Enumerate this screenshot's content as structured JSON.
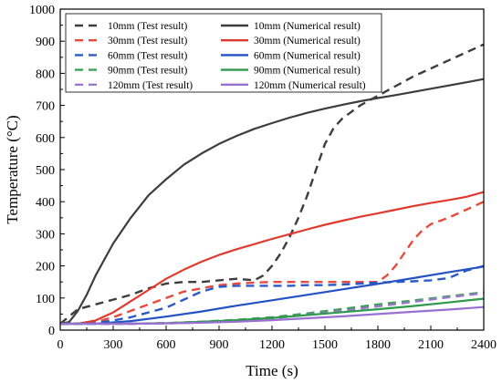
{
  "chart_data": {
    "type": "line",
    "xlabel": "Time (s)",
    "ylabel": "Temperature (°C)",
    "xlim": [
      0,
      2400
    ],
    "ylim": [
      0,
      1000
    ],
    "xticks": [
      0,
      300,
      600,
      900,
      1200,
      1500,
      1800,
      2100,
      2400
    ],
    "yticks": [
      0,
      100,
      200,
      300,
      400,
      500,
      600,
      700,
      800,
      900,
      1000
    ],
    "grid": false,
    "legend_position": "top-left",
    "series": [
      {
        "name": "10mm (Test result)",
        "style": "dashed",
        "color": "#3d3d3d",
        "x": [
          0,
          100,
          200,
          300,
          400,
          500,
          600,
          700,
          800,
          900,
          1000,
          1100,
          1150,
          1200,
          1250,
          1300,
          1350,
          1400,
          1450,
          1500,
          1550,
          1600,
          1700,
          1800,
          1900,
          2000,
          2100,
          2200,
          2300,
          2400
        ],
        "y": [
          20,
          65,
          80,
          95,
          110,
          130,
          145,
          150,
          150,
          155,
          160,
          155,
          170,
          200,
          240,
          290,
          350,
          420,
          500,
          580,
          630,
          660,
          700,
          730,
          760,
          790,
          815,
          840,
          865,
          890
        ]
      },
      {
        "name": "30mm (Test result)",
        "style": "dashed",
        "color": "#e84a3c",
        "x": [
          0,
          100,
          200,
          300,
          400,
          500,
          600,
          700,
          800,
          900,
          1000,
          1100,
          1200,
          1300,
          1400,
          1500,
          1600,
          1700,
          1800,
          1850,
          1900,
          1950,
          2000,
          2050,
          2100,
          2200,
          2300,
          2400
        ],
        "y": [
          20,
          20,
          25,
          40,
          60,
          80,
          100,
          120,
          130,
          140,
          145,
          148,
          150,
          150,
          150,
          150,
          150,
          150,
          150,
          170,
          200,
          240,
          280,
          310,
          330,
          350,
          375,
          400
        ]
      },
      {
        "name": "60mm (Test result)",
        "style": "dashed",
        "color": "#2a5ac8",
        "x": [
          0,
          100,
          200,
          300,
          400,
          500,
          600,
          700,
          800,
          900,
          1000,
          1100,
          1200,
          1300,
          1400,
          1500,
          1600,
          1700,
          1800,
          1900,
          2000,
          2100,
          2200,
          2300,
          2400
        ],
        "y": [
          20,
          20,
          22,
          30,
          40,
          55,
          70,
          95,
          120,
          135,
          138,
          138,
          138,
          138,
          140,
          140,
          142,
          145,
          148,
          150,
          152,
          155,
          162,
          185,
          200
        ]
      },
      {
        "name": "90mm (Test result)",
        "style": "dashed",
        "color": "#3aa055",
        "x": [
          0,
          200,
          400,
          600,
          800,
          1000,
          1200,
          1400,
          1600,
          1800,
          2000,
          2200,
          2400
        ],
        "y": [
          20,
          20,
          20,
          22,
          26,
          32,
          40,
          52,
          66,
          80,
          92,
          105,
          118
        ]
      },
      {
        "name": "120mm (Test result)",
        "style": "dashed",
        "color": "#9b78cf",
        "x": [
          0,
          200,
          400,
          600,
          800,
          1000,
          1200,
          1400,
          1600,
          1800,
          2000,
          2200,
          2400
        ],
        "y": [
          20,
          20,
          20,
          21,
          24,
          28,
          36,
          48,
          60,
          74,
          88,
          102,
          115
        ]
      },
      {
        "name": "10mm (Numerical result)",
        "style": "solid",
        "color": "#3d3d3d",
        "x": [
          0,
          50,
          100,
          150,
          200,
          300,
          400,
          500,
          600,
          700,
          800,
          900,
          1000,
          1100,
          1200,
          1300,
          1400,
          1500,
          1600,
          1700,
          1800,
          1900,
          2000,
          2100,
          2200,
          2300,
          2400
        ],
        "y": [
          20,
          25,
          60,
          110,
          170,
          270,
          350,
          420,
          470,
          515,
          550,
          580,
          605,
          627,
          645,
          662,
          677,
          690,
          702,
          713,
          723,
          732,
          742,
          752,
          762,
          772,
          782
        ]
      },
      {
        "name": "30mm (Numerical result)",
        "style": "solid",
        "color": "#e03a2e",
        "x": [
          0,
          100,
          200,
          300,
          400,
          500,
          600,
          700,
          800,
          900,
          1000,
          1100,
          1200,
          1300,
          1400,
          1500,
          1600,
          1700,
          1800,
          1900,
          2000,
          2100,
          2200,
          2300,
          2400
        ],
        "y": [
          20,
          20,
          30,
          55,
          90,
          125,
          160,
          188,
          213,
          234,
          252,
          268,
          284,
          299,
          314,
          328,
          341,
          353,
          364,
          375,
          386,
          396,
          405,
          415,
          430
        ]
      },
      {
        "name": "60mm (Numerical result)",
        "style": "solid",
        "color": "#2452c4",
        "x": [
          0,
          200,
          400,
          600,
          800,
          1000,
          1200,
          1400,
          1600,
          1800,
          2000,
          2200,
          2400
        ],
        "y": [
          20,
          20,
          28,
          42,
          58,
          76,
          93,
          110,
          127,
          144,
          162,
          180,
          198
        ]
      },
      {
        "name": "90mm (Numerical result)",
        "style": "solid",
        "color": "#2e9a4c",
        "x": [
          0,
          400,
          600,
          800,
          1000,
          1200,
          1400,
          1600,
          1800,
          2000,
          2200,
          2400
        ],
        "y": [
          20,
          20,
          22,
          26,
          31,
          38,
          47,
          56,
          65,
          75,
          86,
          98
        ]
      },
      {
        "name": "120mm (Numerical result)",
        "style": "solid",
        "color": "#9a6fd2",
        "x": [
          0,
          400,
          600,
          800,
          1000,
          1200,
          1400,
          1600,
          1800,
          2000,
          2200,
          2400
        ],
        "y": [
          20,
          20,
          21,
          23,
          26,
          31,
          37,
          43,
          50,
          57,
          64,
          72
        ]
      }
    ]
  }
}
